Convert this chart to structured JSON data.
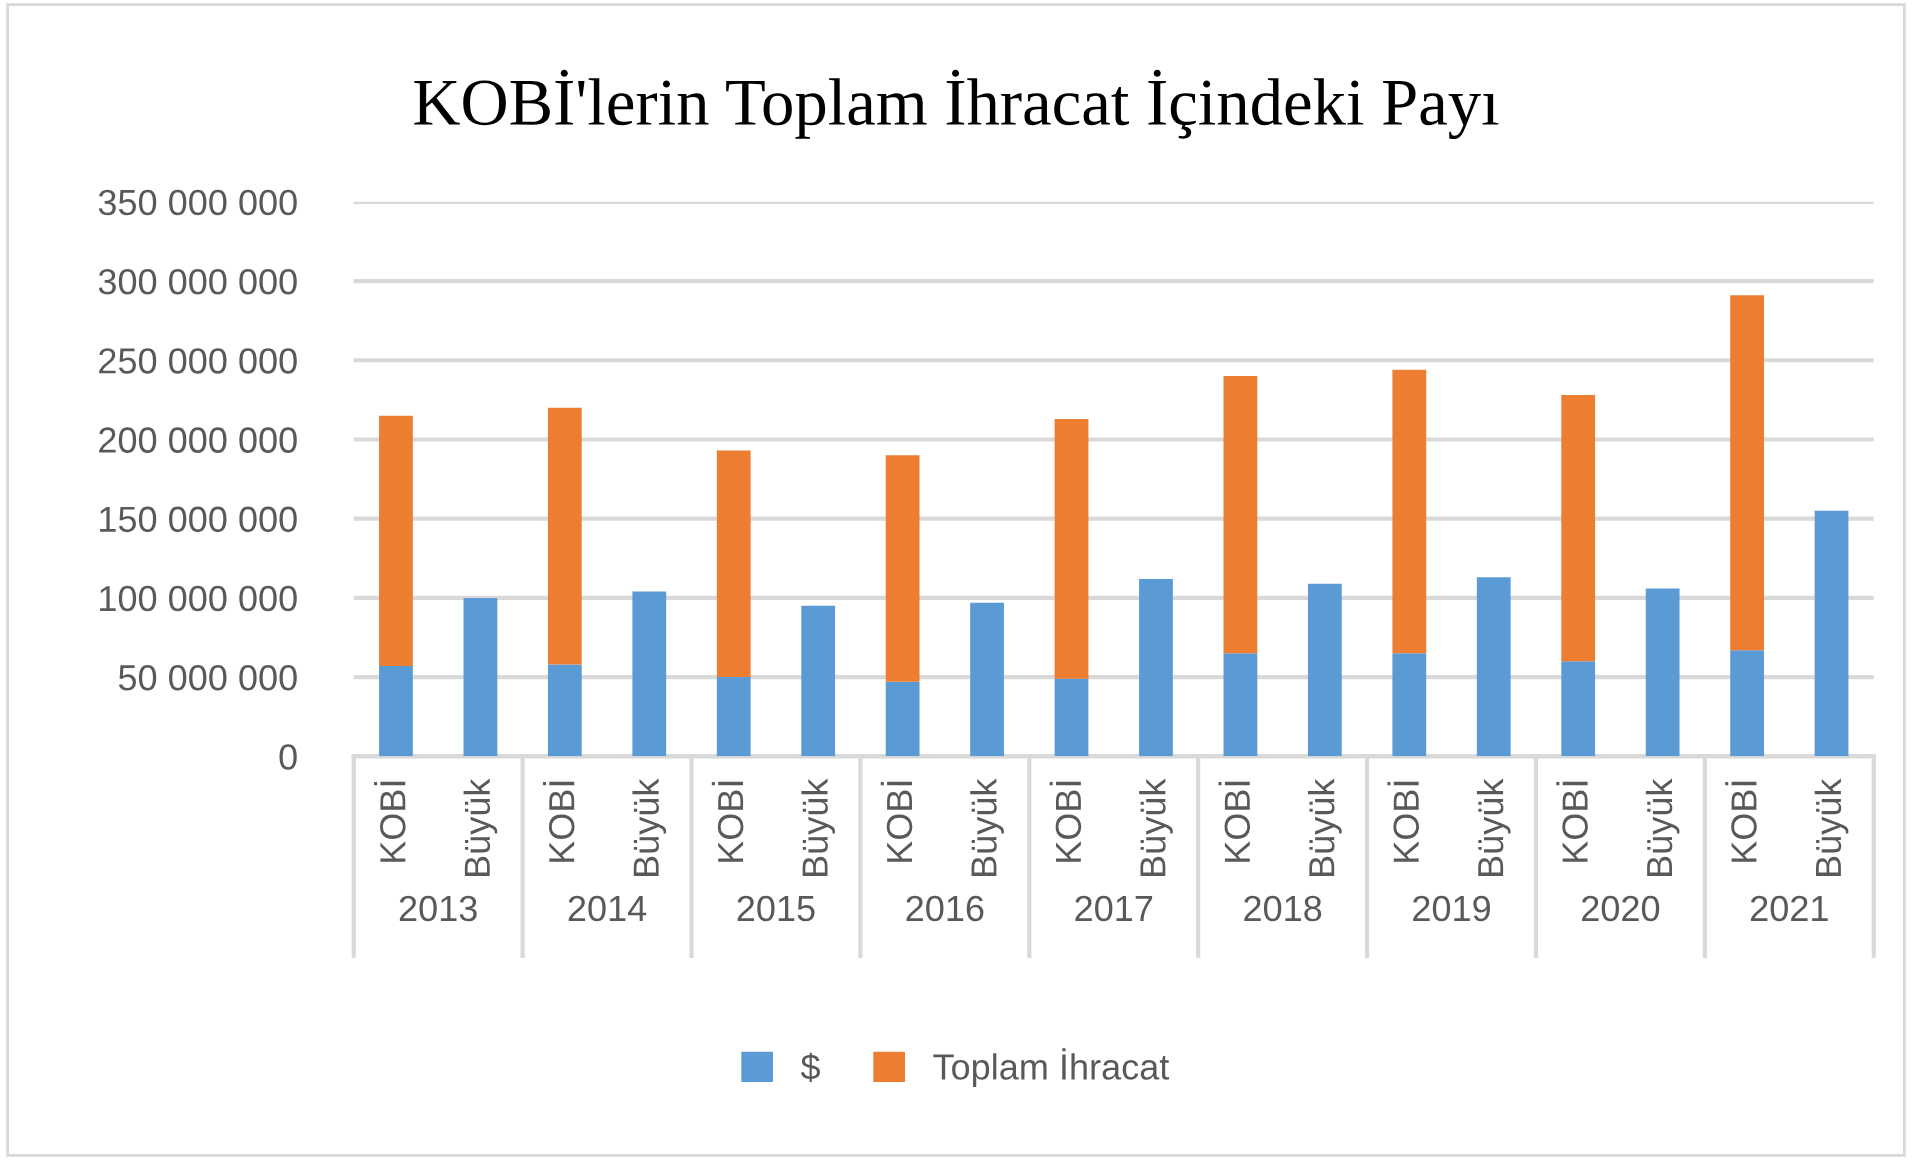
{
  "chart_data": {
    "type": "bar",
    "title": "KOBİ'lerin Toplam İhracat İçindeki Payı",
    "stacked": true,
    "categories": [
      "KOBİ",
      "Büyük",
      "KOBİ",
      "Büyük",
      "KOBİ",
      "Büyük",
      "KOBİ",
      "Büyük",
      "KOBİ",
      "Büyük",
      "KOBİ",
      "Büyük",
      "KOBİ",
      "Büyük",
      "KOBİ",
      "Büyük",
      "KOBİ",
      "Büyük"
    ],
    "annotations": [
      "2013",
      "2014",
      "2015",
      "2016",
      "2017",
      "2018",
      "2019",
      "2020",
      "2021"
    ],
    "series": [
      {
        "name": "$",
        "color": "#5b9bd5",
        "values": [
          57000000,
          100000000,
          58000000,
          104000000,
          50000000,
          95000000,
          47000000,
          97000000,
          49000000,
          112000000,
          65000000,
          109000000,
          65000000,
          113000000,
          60000000,
          106000000,
          67000000,
          155000000
        ]
      },
      {
        "name": "Toplam İhracat",
        "color": "#ed7d31",
        "values": [
          158000000,
          null,
          162000000,
          null,
          143000000,
          null,
          143000000,
          null,
          164000000,
          null,
          175000000,
          null,
          179000000,
          null,
          168000000,
          null,
          224000000,
          null
        ]
      }
    ],
    "ylim": [
      0,
      350000000
    ],
    "yticks": [
      {
        "value": 0,
        "label": "0"
      },
      {
        "value": 50000000,
        "label": "50 000 000"
      },
      {
        "value": 100000000,
        "label": "100 000 000"
      },
      {
        "value": 150000000,
        "label": "150 000 000"
      },
      {
        "value": 200000000,
        "label": "200 000 000"
      },
      {
        "value": 250000000,
        "label": "250 000 000"
      },
      {
        "value": 300000000,
        "label": "300 000 000"
      },
      {
        "value": 350000000,
        "label": "350 000 000"
      }
    ],
    "grid": "y",
    "legend": "bottom"
  }
}
